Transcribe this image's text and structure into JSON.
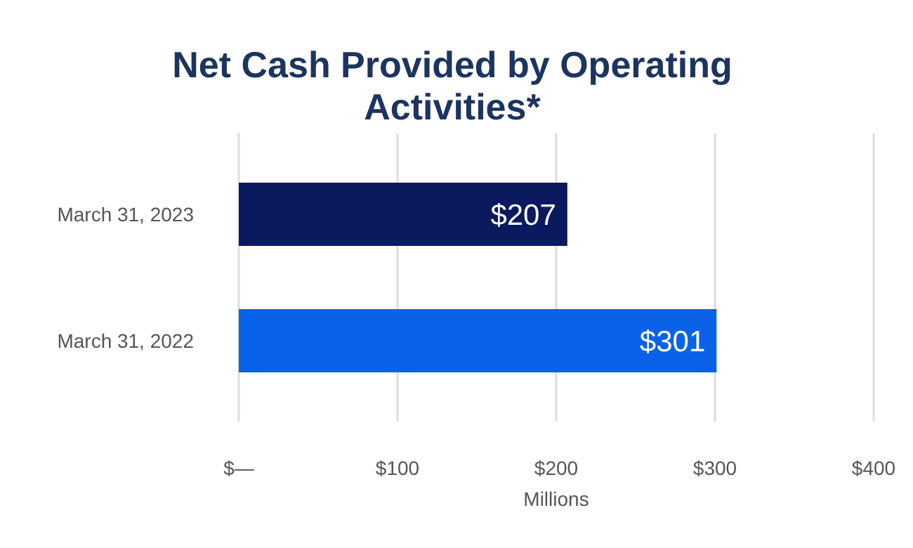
{
  "chart_data": {
    "type": "bar",
    "orientation": "horizontal",
    "title": "Net Cash Provided by Operating Activities*",
    "xlabel": "Millions",
    "categories": [
      "March 31, 2023",
      "March 31, 2022"
    ],
    "values": [
      207,
      301
    ],
    "colors": [
      "#0b1a5e",
      "#0a62e8"
    ],
    "value_labels": [
      "$207",
      "$301"
    ],
    "xlim": [
      0,
      400
    ],
    "xticks": [
      {
        "value": 0,
        "label": "$—"
      },
      {
        "value": 100,
        "label": "$100"
      },
      {
        "value": 200,
        "label": "$200"
      },
      {
        "value": 300,
        "label": "$300"
      },
      {
        "value": 400,
        "label": "$400"
      }
    ],
    "grid": "x"
  }
}
